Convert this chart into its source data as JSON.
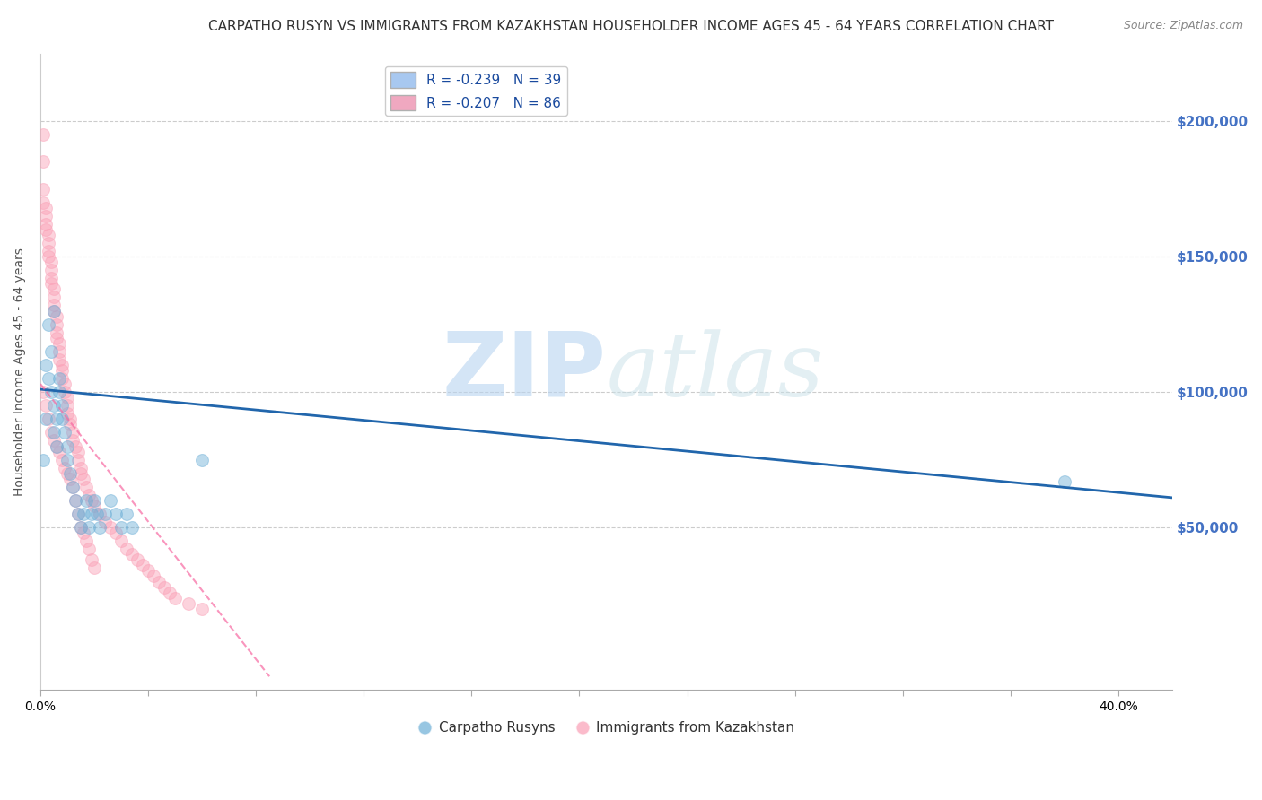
{
  "title": "CARPATHO RUSYN VS IMMIGRANTS FROM KAZAKHSTAN HOUSEHOLDER INCOME AGES 45 - 64 YEARS CORRELATION CHART",
  "source": "Source: ZipAtlas.com",
  "ylabel": "Householder Income Ages 45 - 64 years",
  "ytick_values": [
    50000,
    100000,
    150000,
    200000
  ],
  "ylim": [
    -10000,
    225000
  ],
  "xlim": [
    0.0,
    0.42
  ],
  "xtick_positions": [
    0.0,
    0.04,
    0.08,
    0.12,
    0.16,
    0.2,
    0.24,
    0.28,
    0.32,
    0.36,
    0.4
  ],
  "xtick_labels_show": {
    "0.0": "0.0%",
    "0.40": "40.0%"
  },
  "legend_entries": [
    {
      "label": "R = -0.239   N = 39",
      "color": "#a8c8f0"
    },
    {
      "label": "R = -0.207   N = 86",
      "color": "#f0a8c0"
    }
  ],
  "legend_labels_bottom": [
    "Carpatho Rusyns",
    "Immigrants from Kazakhstan"
  ],
  "blue_scatter_x": [
    0.001,
    0.002,
    0.002,
    0.003,
    0.003,
    0.004,
    0.004,
    0.005,
    0.005,
    0.006,
    0.006,
    0.007,
    0.007,
    0.008,
    0.008,
    0.009,
    0.01,
    0.01,
    0.011,
    0.012,
    0.013,
    0.014,
    0.015,
    0.016,
    0.017,
    0.018,
    0.019,
    0.02,
    0.021,
    0.022,
    0.024,
    0.026,
    0.028,
    0.03,
    0.032,
    0.034,
    0.06,
    0.38,
    0.005
  ],
  "blue_scatter_y": [
    75000,
    90000,
    110000,
    125000,
    105000,
    115000,
    100000,
    95000,
    85000,
    80000,
    90000,
    105000,
    100000,
    95000,
    90000,
    85000,
    80000,
    75000,
    70000,
    65000,
    60000,
    55000,
    50000,
    55000,
    60000,
    50000,
    55000,
    60000,
    55000,
    50000,
    55000,
    60000,
    55000,
    50000,
    55000,
    50000,
    75000,
    67000,
    130000
  ],
  "pink_scatter_x": [
    0.001,
    0.001,
    0.001,
    0.002,
    0.002,
    0.002,
    0.002,
    0.003,
    0.003,
    0.003,
    0.003,
    0.004,
    0.004,
    0.004,
    0.004,
    0.005,
    0.005,
    0.005,
    0.005,
    0.006,
    0.006,
    0.006,
    0.006,
    0.007,
    0.007,
    0.007,
    0.008,
    0.008,
    0.008,
    0.009,
    0.009,
    0.01,
    0.01,
    0.01,
    0.011,
    0.011,
    0.012,
    0.012,
    0.013,
    0.014,
    0.014,
    0.015,
    0.015,
    0.016,
    0.017,
    0.018,
    0.019,
    0.02,
    0.022,
    0.024,
    0.026,
    0.028,
    0.03,
    0.032,
    0.034,
    0.036,
    0.038,
    0.04,
    0.042,
    0.044,
    0.046,
    0.048,
    0.05,
    0.055,
    0.06,
    0.001,
    0.002,
    0.003,
    0.004,
    0.005,
    0.006,
    0.007,
    0.008,
    0.009,
    0.01,
    0.011,
    0.012,
    0.013,
    0.014,
    0.015,
    0.016,
    0.017,
    0.018,
    0.019,
    0.02,
    0.001
  ],
  "pink_scatter_y": [
    185000,
    175000,
    170000,
    168000,
    165000,
    162000,
    160000,
    158000,
    155000,
    152000,
    150000,
    148000,
    145000,
    142000,
    140000,
    138000,
    135000,
    132000,
    130000,
    128000,
    125000,
    122000,
    120000,
    118000,
    115000,
    112000,
    110000,
    108000,
    105000,
    103000,
    100000,
    98000,
    95000,
    92000,
    90000,
    88000,
    85000,
    82000,
    80000,
    78000,
    75000,
    72000,
    70000,
    68000,
    65000,
    62000,
    60000,
    58000,
    55000,
    52000,
    50000,
    48000,
    45000,
    42000,
    40000,
    38000,
    36000,
    34000,
    32000,
    30000,
    28000,
    26000,
    24000,
    22000,
    20000,
    100000,
    95000,
    90000,
    85000,
    82000,
    80000,
    78000,
    75000,
    72000,
    70000,
    68000,
    65000,
    60000,
    55000,
    50000,
    48000,
    45000,
    42000,
    38000,
    35000,
    195000
  ],
  "blue_line_x": [
    0.0,
    0.42
  ],
  "blue_line_y": [
    101000,
    61000
  ],
  "pink_line_x": [
    0.0,
    0.085
  ],
  "pink_line_y": [
    103000,
    -5000
  ],
  "scatter_size": 100,
  "scatter_alpha": 0.45,
  "blue_color": "#6baed6",
  "pink_color": "#fa9fb5",
  "blue_line_color": "#2166ac",
  "pink_line_color": "#f768a1",
  "grid_color": "#cccccc",
  "background_color": "#ffffff",
  "watermark_zip": "ZIP",
  "watermark_atlas": "atlas",
  "title_fontsize": 11,
  "axis_label_fontsize": 10,
  "tick_fontsize": 10,
  "right_tick_color": "#4472c4"
}
